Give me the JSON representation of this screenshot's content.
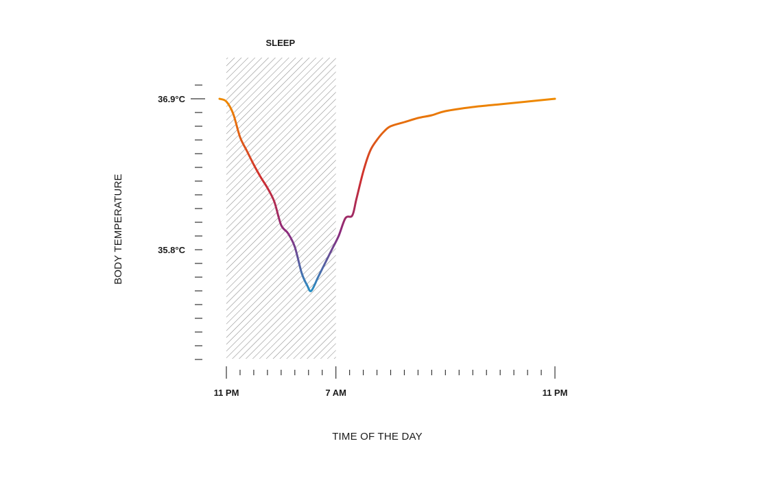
{
  "chart_data": {
    "type": "line",
    "title": "",
    "xlabel": "TIME OF THE DAY",
    "ylabel": "BODY TEMPERATURE",
    "x_unit": "hours since 11 PM",
    "xlim": [
      0,
      24
    ],
    "ylim": [
      34.95,
      37.0
    ],
    "x_tick_labels": [
      {
        "x": 0,
        "label": "11 PM"
      },
      {
        "x": 8,
        "label": "7 AM"
      },
      {
        "x": 24,
        "label": "11 PM"
      }
    ],
    "y_tick_labels": [
      {
        "y": 36.9,
        "label": "36.9°C"
      },
      {
        "y": 35.8,
        "label": "35.8°C"
      }
    ],
    "bands": [
      {
        "label": "SLEEP",
        "x_start": 0,
        "x_end": 8
      }
    ],
    "series": [
      {
        "x": [
          -0.5,
          0,
          0.5,
          1,
          1.5,
          2,
          2.5,
          3,
          3.5,
          4,
          4.5,
          5,
          5.5,
          5.9,
          6.2,
          6.7,
          7.2,
          7.7,
          8.2,
          8.7,
          9.2,
          9.5,
          10,
          10.5,
          11,
          11.5,
          12,
          13,
          14,
          15,
          16,
          18,
          20,
          22,
          24
        ],
        "y": [
          36.9,
          36.88,
          36.79,
          36.62,
          36.52,
          36.42,
          36.33,
          36.25,
          36.15,
          35.98,
          35.92,
          35.82,
          35.63,
          35.54,
          35.5,
          35.6,
          35.7,
          35.8,
          35.9,
          36.03,
          36.05,
          36.17,
          36.37,
          36.52,
          36.6,
          36.66,
          36.7,
          36.73,
          36.76,
          36.78,
          36.81,
          36.84,
          36.86,
          36.88,
          36.9
        ],
        "colors": [
          "#ef8a00",
          "#cf2e2e",
          "#8b2a7d",
          "#1f97c9"
        ]
      }
    ]
  }
}
